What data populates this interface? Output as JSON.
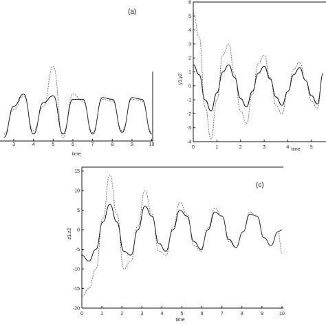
{
  "chart_data": [
    {
      "panel": "(a)",
      "type": "line",
      "xlabel": "time",
      "ylabel": "",
      "xlim": [
        2.3,
        10.05
      ],
      "ylim": [
        -1,
        1
      ],
      "xticks": [
        3,
        4,
        5,
        6,
        7,
        8,
        9,
        10
      ],
      "x": [
        2.5,
        3.0,
        3.5,
        4.0,
        4.5,
        5.0,
        5.5,
        6.0,
        6.5,
        7.0,
        7.5,
        8.0,
        8.5,
        9.0,
        9.5,
        10.0
      ],
      "series": [
        {
          "values": [
            -0.9,
            0.0,
            0.35,
            -0.8,
            0.1,
            0.3,
            -0.8,
            0.2,
            0.2,
            -0.8,
            0.25,
            0.2,
            -0.75,
            0.25,
            0.2,
            -0.8
          ]
        },
        {
          "values": [
            -0.8,
            -0.1,
            0.3,
            -0.7,
            0.0,
            1.15,
            -0.9,
            0.35,
            0.15,
            -0.75,
            0.2,
            0.15,
            -0.7,
            0.2,
            0.15,
            -0.75
          ]
        }
      ]
    },
    {
      "panel": "(b)",
      "type": "line",
      "xlabel": "time",
      "ylabel": "y1,y2",
      "xlim": [
        0,
        5.5
      ],
      "ylim": [
        -4,
        6
      ],
      "xticks": [
        0,
        1,
        2,
        3,
        4,
        5
      ],
      "yticks": [
        -4,
        -3,
        -2,
        -1,
        0,
        1,
        2,
        3,
        4,
        5,
        6
      ],
      "x": [
        0,
        0.25,
        0.5,
        0.75,
        1.0,
        1.25,
        1.5,
        1.75,
        2.0,
        2.25,
        2.5,
        2.75,
        3.0,
        3.25,
        3.5,
        3.75,
        4.0,
        4.25,
        4.5,
        4.75,
        5.0,
        5.25,
        5.5
      ],
      "series": [
        {
          "values": [
            1.5,
            0.8,
            -1.0,
            -1.8,
            -0.5,
            1.0,
            1.5,
            0.6,
            -0.9,
            -1.5,
            -0.4,
            0.9,
            1.4,
            0.5,
            -0.8,
            -1.4,
            -0.4,
            0.8,
            1.3,
            0.4,
            -0.7,
            -1.3,
            0.9
          ]
        },
        {
          "values": [
            5.2,
            3.5,
            -1.5,
            -3.8,
            -1.0,
            2.2,
            3.0,
            0.8,
            -1.8,
            -2.7,
            -0.6,
            1.6,
            2.2,
            0.6,
            -1.4,
            -2.0,
            -0.4,
            1.2,
            1.7,
            0.4,
            -1.1,
            -1.6,
            0.9
          ]
        }
      ]
    },
    {
      "panel": "(c)",
      "type": "line",
      "xlabel": "time",
      "ylabel": "z1,z2",
      "xlim": [
        0,
        10
      ],
      "ylim": [
        -20,
        16
      ],
      "xticks": [
        0,
        1,
        2,
        3,
        4,
        5,
        6,
        7,
        8,
        9,
        10
      ],
      "yticks": [
        -20,
        -15,
        -10,
        -5,
        0,
        5,
        10,
        15
      ],
      "x": [
        0,
        0.35,
        0.7,
        1.05,
        1.4,
        1.75,
        2.1,
        2.45,
        2.8,
        3.15,
        3.5,
        3.85,
        4.2,
        4.55,
        4.9,
        5.25,
        5.6,
        5.95,
        6.3,
        6.65,
        7.0,
        7.35,
        7.7,
        8.05,
        8.4,
        8.75,
        9.1,
        9.45,
        9.8,
        10.0
      ],
      "series": [
        {
          "values": [
            -6.5,
            -8.0,
            -5.0,
            2.0,
            6.5,
            2.0,
            -5.5,
            -6.5,
            0.0,
            6.0,
            3.5,
            -3.5,
            -5.5,
            0.0,
            5.0,
            3.5,
            -3.0,
            -5.0,
            0.0,
            4.5,
            3.5,
            -2.5,
            -4.5,
            -0.5,
            4.0,
            3.5,
            -2.0,
            -4.0,
            -0.5,
            0.0
          ]
        },
        {
          "values": [
            -17.0,
            -15.0,
            -10.0,
            3.0,
            14.0,
            4.0,
            -10.0,
            -8.0,
            1.0,
            10.0,
            4.0,
            -5.5,
            -6.5,
            0.5,
            7.0,
            4.0,
            -4.0,
            -5.5,
            0.5,
            5.5,
            3.5,
            -3.0,
            -4.5,
            -0.5,
            4.5,
            3.5,
            -2.0,
            -4.0,
            -0.5,
            -6.0
          ]
        }
      ]
    }
  ]
}
